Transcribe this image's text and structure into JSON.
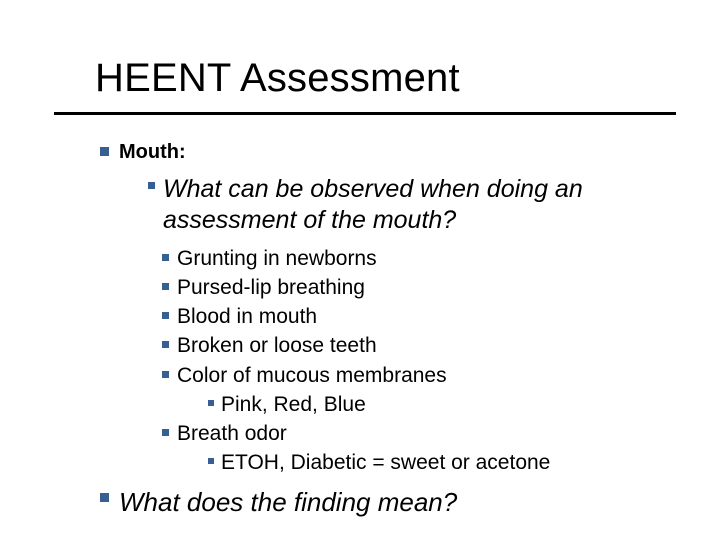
{
  "title": "HEENT Assessment",
  "bullet_color": "#376092",
  "text_color": "#000000",
  "background_color": "#ffffff",
  "slide": {
    "level1_heading": "Mouth:",
    "question": "What can be observed when doing an assessment of the mouth?",
    "items": {
      "i0": "Grunting in newborns",
      "i1": "Pursed-lip breathing",
      "i2": "Blood in mouth",
      "i3": "Broken or loose teeth",
      "i4": "Color of mucous membranes",
      "i4_sub": "Pink, Red, Blue",
      "i5": "Breath odor",
      "i5_sub": "ETOH, Diabetic = sweet or acetone"
    },
    "closing_question": "What does the finding mean?"
  }
}
